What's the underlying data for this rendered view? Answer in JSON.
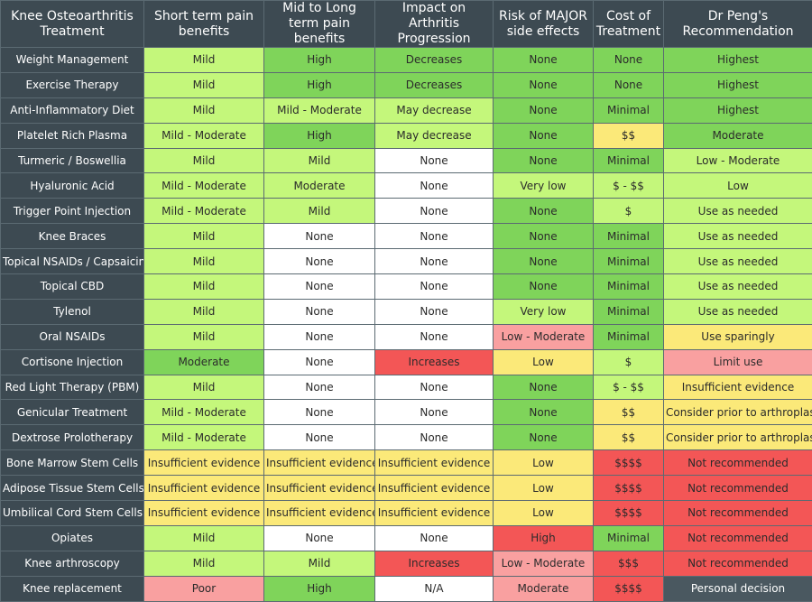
{
  "headers": [
    "Knee Osteoarthritis Treatment",
    "Short term pain benefits",
    "Mid to Long term pain benefits",
    "Impact on Arthritis Progression",
    "Risk of MAJOR side effects",
    "Cost of Treatment",
    "Dr Peng's Recommendation"
  ],
  "colors": {
    "high": "#7fd45a",
    "mild": "#c4f77b",
    "none": "#ffffff",
    "insufficient": "#fbe979",
    "poor": "#f9a0a0",
    "bad": "#f35656",
    "header": "#3d4a52",
    "personal_decision": "#4a5860"
  },
  "rows": [
    {
      "treatment": "Weight Management",
      "cells": [
        {
          "text": "Mild",
          "tone": "mild"
        },
        {
          "text": "High",
          "tone": "high"
        },
        {
          "text": "Decreases",
          "tone": "high"
        },
        {
          "text": "None",
          "tone": "high"
        },
        {
          "text": "None",
          "tone": "high"
        },
        {
          "text": "Highest",
          "tone": "high"
        }
      ]
    },
    {
      "treatment": "Exercise Therapy",
      "cells": [
        {
          "text": "Mild",
          "tone": "mild"
        },
        {
          "text": "High",
          "tone": "high"
        },
        {
          "text": "Decreases",
          "tone": "high"
        },
        {
          "text": "None",
          "tone": "high"
        },
        {
          "text": "None",
          "tone": "high"
        },
        {
          "text": "Highest",
          "tone": "high"
        }
      ]
    },
    {
      "treatment": "Anti-Inflammatory Diet",
      "cells": [
        {
          "text": "Mild",
          "tone": "mild"
        },
        {
          "text": "Mild - Moderate",
          "tone": "mild"
        },
        {
          "text": "May decrease",
          "tone": "mild"
        },
        {
          "text": "None",
          "tone": "high"
        },
        {
          "text": "Minimal",
          "tone": "high"
        },
        {
          "text": "Highest",
          "tone": "high"
        }
      ]
    },
    {
      "treatment": "Platelet Rich Plasma",
      "cells": [
        {
          "text": "Mild - Moderate",
          "tone": "mild"
        },
        {
          "text": "High",
          "tone": "high"
        },
        {
          "text": "May decrease",
          "tone": "mild"
        },
        {
          "text": "None",
          "tone": "high"
        },
        {
          "text": "$$",
          "tone": "insufficient"
        },
        {
          "text": "Moderate",
          "tone": "high"
        }
      ]
    },
    {
      "treatment": "Turmeric / Boswellia",
      "cells": [
        {
          "text": "Mild",
          "tone": "mild"
        },
        {
          "text": "Mild",
          "tone": "mild"
        },
        {
          "text": "None",
          "tone": "none"
        },
        {
          "text": "None",
          "tone": "high"
        },
        {
          "text": "Minimal",
          "tone": "high"
        },
        {
          "text": "Low - Moderate",
          "tone": "mild"
        }
      ]
    },
    {
      "treatment": "Hyaluronic Acid",
      "cells": [
        {
          "text": "Mild - Moderate",
          "tone": "mild"
        },
        {
          "text": "Moderate",
          "tone": "mild"
        },
        {
          "text": "None",
          "tone": "none"
        },
        {
          "text": "Very low",
          "tone": "mild"
        },
        {
          "text": "$ - $$",
          "tone": "mild"
        },
        {
          "text": "Low",
          "tone": "mild"
        }
      ]
    },
    {
      "treatment": "Trigger Point Injection",
      "cells": [
        {
          "text": "Mild - Moderate",
          "tone": "mild"
        },
        {
          "text": "Mild",
          "tone": "mild"
        },
        {
          "text": "None",
          "tone": "none"
        },
        {
          "text": "None",
          "tone": "high"
        },
        {
          "text": "$",
          "tone": "mild"
        },
        {
          "text": "Use as needed",
          "tone": "mild"
        }
      ]
    },
    {
      "treatment": "Knee Braces",
      "cells": [
        {
          "text": "Mild",
          "tone": "mild"
        },
        {
          "text": "None",
          "tone": "none"
        },
        {
          "text": "None",
          "tone": "none"
        },
        {
          "text": "None",
          "tone": "high"
        },
        {
          "text": "Minimal",
          "tone": "high"
        },
        {
          "text": "Use as needed",
          "tone": "mild"
        }
      ]
    },
    {
      "treatment": "Topical NSAIDs / Capsaicin",
      "cells": [
        {
          "text": "Mild",
          "tone": "mild"
        },
        {
          "text": "None",
          "tone": "none"
        },
        {
          "text": "None",
          "tone": "none"
        },
        {
          "text": "None",
          "tone": "high"
        },
        {
          "text": "Minimal",
          "tone": "high"
        },
        {
          "text": "Use as needed",
          "tone": "mild"
        }
      ]
    },
    {
      "treatment": "Topical CBD",
      "cells": [
        {
          "text": "Mild",
          "tone": "mild"
        },
        {
          "text": "None",
          "tone": "none"
        },
        {
          "text": "None",
          "tone": "none"
        },
        {
          "text": "None",
          "tone": "high"
        },
        {
          "text": "Minimal",
          "tone": "high"
        },
        {
          "text": "Use as needed",
          "tone": "mild"
        }
      ]
    },
    {
      "treatment": "Tylenol",
      "cells": [
        {
          "text": "Mild",
          "tone": "mild"
        },
        {
          "text": "None",
          "tone": "none"
        },
        {
          "text": "None",
          "tone": "none"
        },
        {
          "text": "Very low",
          "tone": "mild"
        },
        {
          "text": "Minimal",
          "tone": "high"
        },
        {
          "text": "Use as needed",
          "tone": "mild"
        }
      ]
    },
    {
      "treatment": "Oral NSAIDs",
      "cells": [
        {
          "text": "Mild",
          "tone": "mild"
        },
        {
          "text": "None",
          "tone": "none"
        },
        {
          "text": "None",
          "tone": "none"
        },
        {
          "text": "Low - Moderate",
          "tone": "poor"
        },
        {
          "text": "Minimal",
          "tone": "high"
        },
        {
          "text": "Use sparingly",
          "tone": "insufficient"
        }
      ]
    },
    {
      "treatment": "Cortisone Injection",
      "cells": [
        {
          "text": "Moderate",
          "tone": "high"
        },
        {
          "text": "None",
          "tone": "none"
        },
        {
          "text": "Increases",
          "tone": "bad"
        },
        {
          "text": "Low",
          "tone": "insufficient"
        },
        {
          "text": "$",
          "tone": "mild"
        },
        {
          "text": "Limit use",
          "tone": "poor"
        }
      ]
    },
    {
      "treatment": "Red Light Therapy (PBM)",
      "cells": [
        {
          "text": "Mild",
          "tone": "mild"
        },
        {
          "text": "None",
          "tone": "none"
        },
        {
          "text": "None",
          "tone": "none"
        },
        {
          "text": "None",
          "tone": "high"
        },
        {
          "text": "$ - $$",
          "tone": "mild"
        },
        {
          "text": "Insufficient evidence",
          "tone": "insufficient"
        }
      ]
    },
    {
      "treatment": "Genicular Treatment",
      "cells": [
        {
          "text": "Mild - Moderate",
          "tone": "mild"
        },
        {
          "text": "None",
          "tone": "none"
        },
        {
          "text": "None",
          "tone": "none"
        },
        {
          "text": "None",
          "tone": "high"
        },
        {
          "text": "$$",
          "tone": "insufficient"
        },
        {
          "text": "Consider prior to arthroplasty",
          "tone": "insufficient"
        }
      ]
    },
    {
      "treatment": "Dextrose Prolotherapy",
      "cells": [
        {
          "text": "Mild - Moderate",
          "tone": "mild"
        },
        {
          "text": "None",
          "tone": "none"
        },
        {
          "text": "None",
          "tone": "none"
        },
        {
          "text": "None",
          "tone": "high"
        },
        {
          "text": "$$",
          "tone": "insufficient"
        },
        {
          "text": "Consider prior to arthroplasty",
          "tone": "insufficient"
        }
      ]
    },
    {
      "treatment": "Bone Marrow Stem Cells",
      "cells": [
        {
          "text": "Insufficient evidence",
          "tone": "insufficient"
        },
        {
          "text": "Insufficient evidence",
          "tone": "insufficient"
        },
        {
          "text": "Insufficient evidence",
          "tone": "insufficient"
        },
        {
          "text": "Low",
          "tone": "insufficient"
        },
        {
          "text": "$$$$",
          "tone": "bad"
        },
        {
          "text": "Not recommended",
          "tone": "bad"
        }
      ]
    },
    {
      "treatment": "Adipose Tissue Stem Cells",
      "cells": [
        {
          "text": "Insufficient evidence",
          "tone": "insufficient"
        },
        {
          "text": "Insufficient evidence",
          "tone": "insufficient"
        },
        {
          "text": "Insufficient evidence",
          "tone": "insufficient"
        },
        {
          "text": "Low",
          "tone": "insufficient"
        },
        {
          "text": "$$$$",
          "tone": "bad"
        },
        {
          "text": "Not recommended",
          "tone": "bad"
        }
      ]
    },
    {
      "treatment": "Umbilical Cord Stem Cells",
      "cells": [
        {
          "text": "Insufficient evidence",
          "tone": "insufficient"
        },
        {
          "text": "Insufficient evidence",
          "tone": "insufficient"
        },
        {
          "text": "Insufficient evidence",
          "tone": "insufficient"
        },
        {
          "text": "Low",
          "tone": "insufficient"
        },
        {
          "text": "$$$$",
          "tone": "bad"
        },
        {
          "text": "Not recommended",
          "tone": "bad"
        }
      ]
    },
    {
      "treatment": "Opiates",
      "cells": [
        {
          "text": "Mild",
          "tone": "mild"
        },
        {
          "text": "None",
          "tone": "none"
        },
        {
          "text": "None",
          "tone": "none"
        },
        {
          "text": "High",
          "tone": "bad"
        },
        {
          "text": "Minimal",
          "tone": "high"
        },
        {
          "text": "Not recommended",
          "tone": "bad"
        }
      ]
    },
    {
      "treatment": "Knee arthroscopy",
      "cells": [
        {
          "text": "Mild",
          "tone": "mild"
        },
        {
          "text": "Mild",
          "tone": "mild"
        },
        {
          "text": "Increases",
          "tone": "bad"
        },
        {
          "text": "Low - Moderate",
          "tone": "poor"
        },
        {
          "text": "$$$",
          "tone": "bad"
        },
        {
          "text": "Not recommended",
          "tone": "bad"
        }
      ]
    },
    {
      "treatment": "Knee replacement",
      "cells": [
        {
          "text": "Poor",
          "tone": "poor"
        },
        {
          "text": "High",
          "tone": "high"
        },
        {
          "text": "N/A",
          "tone": "none"
        },
        {
          "text": "Moderate",
          "tone": "poor"
        },
        {
          "text": "$$$$",
          "tone": "bad"
        },
        {
          "text": "Personal decision",
          "tone": "personal_decision"
        }
      ]
    }
  ]
}
